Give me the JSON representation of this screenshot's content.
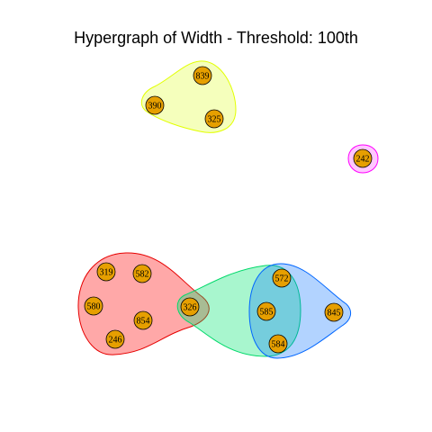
{
  "title": "Hypergraph of Width - Threshold: 100th",
  "node_fill": "#E69F00",
  "node_stroke": "#000000",
  "hyperedges": [
    {
      "name": "hyperedge-yellow",
      "fill": "rgba(230,255,80,0.38)",
      "stroke": "#e2ff00",
      "members": [
        "839",
        "390",
        "325"
      ]
    },
    {
      "name": "hyperedge-magenta",
      "fill": "rgba(255,0,255,0.22)",
      "stroke": "#ff00ff",
      "members": [
        "242"
      ]
    },
    {
      "name": "hyperedge-red",
      "fill": "rgba(255,0,0,0.34)",
      "stroke": "#e60000",
      "members": [
        "319",
        "582",
        "580",
        "854",
        "246",
        "326"
      ]
    },
    {
      "name": "hyperedge-green",
      "fill": "rgba(0,230,110,0.34)",
      "stroke": "#00d96a",
      "members": [
        "326",
        "572",
        "585",
        "584"
      ]
    },
    {
      "name": "hyperedge-blue",
      "fill": "rgba(0,110,255,0.30)",
      "stroke": "#0066ff",
      "members": [
        "572",
        "585",
        "584",
        "845"
      ]
    }
  ],
  "nodes": [
    "839",
    "390",
    "325",
    "242",
    "319",
    "582",
    "580",
    "854",
    "246",
    "326",
    "572",
    "585",
    "584",
    "845"
  ]
}
